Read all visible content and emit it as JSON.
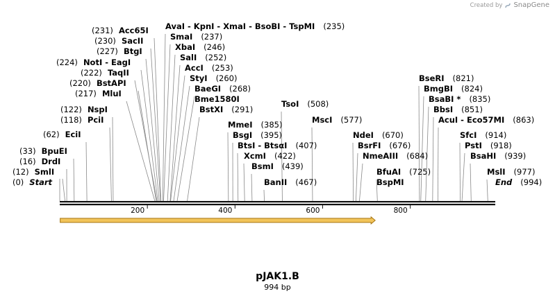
{
  "header": {
    "credit_prefix": "Created by",
    "credit_brand": "SnapGene",
    "logo_icon": "snapgene-logo-icon"
  },
  "plasmid": {
    "name": "pJAK1.B",
    "size_label": "994 bp",
    "length": 994
  },
  "colors": {
    "backbone": "#111111",
    "leader": "#888888",
    "feature_fill": "#f2c45a",
    "feature_stroke": "#a67410"
  },
  "axis": {
    "ticks": [
      {
        "pos": 200,
        "label": "200"
      },
      {
        "pos": 400,
        "label": "400"
      },
      {
        "pos": 600,
        "label": "600"
      },
      {
        "pos": 800,
        "label": "800"
      }
    ]
  },
  "feature": {
    "start": 1,
    "end": 720,
    "direction": "forward"
  },
  "sites": [
    {
      "name": "Start",
      "pos_label": "(0)",
      "pos": 0,
      "italic": true
    },
    {
      "name": "SmlI",
      "pos_label": "(12)",
      "pos": 12
    },
    {
      "name": "DrdI",
      "pos_label": "(16)",
      "pos": 16
    },
    {
      "name": "BpuEI",
      "pos_label": "(33)",
      "pos": 33
    },
    {
      "name": "EciI",
      "pos_label": "(62)",
      "pos": 62
    },
    {
      "name": "PciI",
      "pos_label": "(118)",
      "pos": 118
    },
    {
      "name": "NspI",
      "pos_label": "(122)",
      "pos": 122
    },
    {
      "name": "MluI",
      "pos_label": "(217)",
      "pos": 217
    },
    {
      "name": "BstAPI",
      "pos_label": "(220)",
      "pos": 220
    },
    {
      "name": "TaqII",
      "pos_label": "(222)",
      "pos": 222
    },
    {
      "name": "NotI - EagI",
      "pos_label": "(224)",
      "pos": 224
    },
    {
      "name": "BtgI",
      "pos_label": "(227)",
      "pos": 227
    },
    {
      "name": "SacII",
      "pos_label": "(230)",
      "pos": 230
    },
    {
      "name": "Acc65I",
      "pos_label": "(231)",
      "pos": 231
    },
    {
      "name": "AvaI - KpnI - XmaI - BsoBI - TspMI",
      "pos_label": "(235)",
      "pos": 235
    },
    {
      "name": "SmaI",
      "pos_label": "(237)",
      "pos": 237
    },
    {
      "name": "XbaI",
      "pos_label": "(246)",
      "pos": 246
    },
    {
      "name": "SalI",
      "pos_label": "(252)",
      "pos": 252
    },
    {
      "name": "AccI",
      "pos_label": "(253)",
      "pos": 253
    },
    {
      "name": "StyI",
      "pos_label": "(260)",
      "pos": 260
    },
    {
      "name": "BaeGI",
      "pos_label": "(268)",
      "pos": 268
    },
    {
      "name": "Bme1580I",
      "pos_label": "",
      "pos": 268
    },
    {
      "name": "BstXI",
      "pos_label": "(291)",
      "pos": 291
    },
    {
      "name": "MmeI",
      "pos_label": "(385)",
      "pos": 385
    },
    {
      "name": "BsgI",
      "pos_label": "(395)",
      "pos": 395
    },
    {
      "name": "BtsI - BtsαI",
      "pos_label": "(407)",
      "pos": 407
    },
    {
      "name": "XcmI",
      "pos_label": "(422)",
      "pos": 422
    },
    {
      "name": "BsmI",
      "pos_label": "(439)",
      "pos": 439
    },
    {
      "name": "BanII",
      "pos_label": "(467)",
      "pos": 467
    },
    {
      "name": "TsoI",
      "pos_label": "(508)",
      "pos": 508
    },
    {
      "name": "MscI",
      "pos_label": "(577)",
      "pos": 577
    },
    {
      "name": "NdeI",
      "pos_label": "(670)",
      "pos": 670
    },
    {
      "name": "BsrFI",
      "pos_label": "(676)",
      "pos": 676
    },
    {
      "name": "NmeAIII",
      "pos_label": "(684)",
      "pos": 684
    },
    {
      "name": "BfuAI",
      "pos_label": "(725)",
      "pos": 725
    },
    {
      "name": "BspMI",
      "pos_label": "",
      "pos": 725
    },
    {
      "name": "BseRI",
      "pos_label": "(821)",
      "pos": 821
    },
    {
      "name": "BmgBI",
      "pos_label": "(824)",
      "pos": 824
    },
    {
      "name": "BsaBI *",
      "pos_label": "(835)",
      "pos": 835
    },
    {
      "name": "BbsI",
      "pos_label": "(851)",
      "pos": 851
    },
    {
      "name": "AcuI - Eco57MI",
      "pos_label": "(863)",
      "pos": 863
    },
    {
      "name": "SfcI",
      "pos_label": "(914)",
      "pos": 914
    },
    {
      "name": "PstI",
      "pos_label": "(918)",
      "pos": 918
    },
    {
      "name": "BsaHI",
      "pos_label": "(939)",
      "pos": 939
    },
    {
      "name": "MslI",
      "pos_label": "(977)",
      "pos": 977
    },
    {
      "name": "End",
      "pos_label": "(994)",
      "pos": 994,
      "italic": true
    }
  ]
}
